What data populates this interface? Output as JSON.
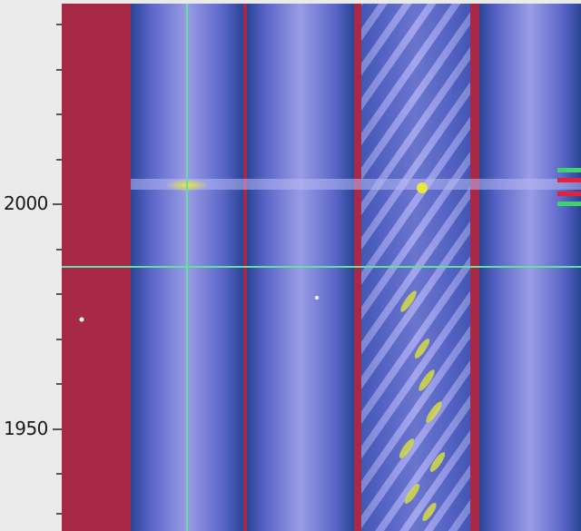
{
  "y_axis": {
    "labels": [
      {
        "text": "2000",
        "value": 2000
      },
      {
        "text": "1950",
        "value": 1950
      }
    ]
  },
  "colors": {
    "background": "#a82848",
    "stripe_core": "#8f91e0",
    "stripe_edge": "#2a4496",
    "cursor": "#5fe39a",
    "highlight": "#e6e83c",
    "marker_green": "#3fd36a",
    "marker_red": "#e5223b"
  },
  "cursor": {
    "vertical_icon": "crosshair-vertical-line",
    "horizontal_icon": "crosshair-horizontal-line"
  },
  "side_markers": [
    "green",
    "red",
    "red",
    "green"
  ]
}
